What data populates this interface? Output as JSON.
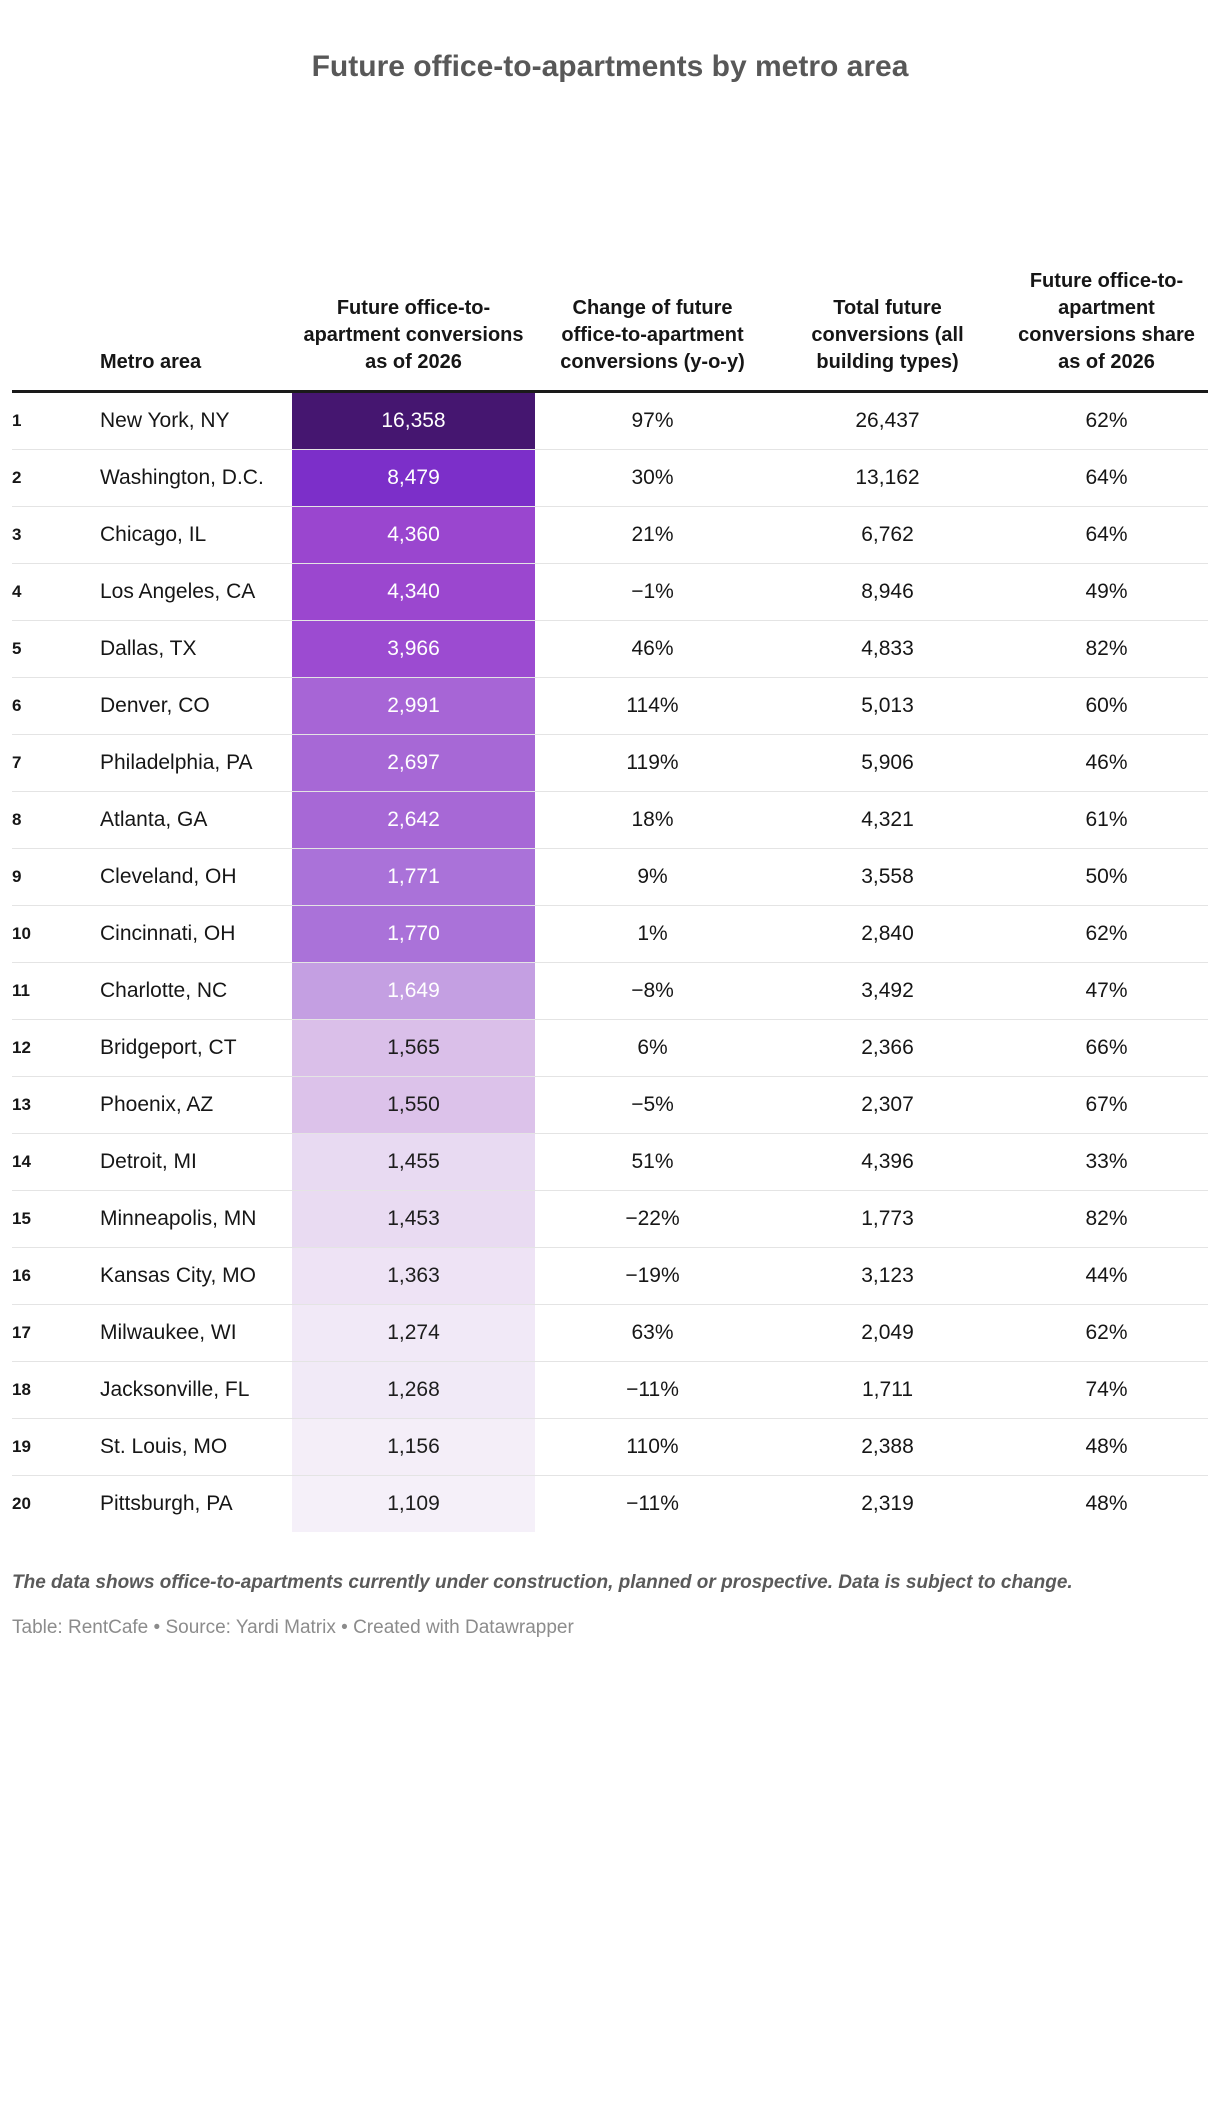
{
  "title": "Future office-to-apartments by metro area",
  "chart_data": {
    "type": "table",
    "title": "Future office-to-apartments by metro area",
    "heatmap_column": "conversions",
    "heatmap_scale": [
      "#451670",
      "#f5f0f9"
    ],
    "columns": [
      {
        "id": "rank",
        "label": ""
      },
      {
        "id": "metro",
        "label": "Metro area"
      },
      {
        "id": "conversions",
        "label": "Future office-to-apartment conversions as of 2026"
      },
      {
        "id": "change",
        "label": "Change of future office-to-apartment conversions (y-o-y)"
      },
      {
        "id": "total",
        "label": "Total future conversions (all building types)"
      },
      {
        "id": "share",
        "label": "Future office-to-apartment conversions share as of 2026"
      }
    ],
    "rows": [
      {
        "rank": "1",
        "metro": "New York, NY",
        "conversions": "16,358",
        "change": "97%",
        "total": "26,437",
        "share": "62%",
        "cell_bg": "#451670",
        "cell_text": "#ffffff"
      },
      {
        "rank": "2",
        "metro": "Washington, D.C.",
        "conversions": "8,479",
        "change": "30%",
        "total": "13,162",
        "share": "64%",
        "cell_bg": "#7c2fc9",
        "cell_text": "#ffffff"
      },
      {
        "rank": "3",
        "metro": "Chicago, IL",
        "conversions": "4,360",
        "change": "21%",
        "total": "6,762",
        "share": "64%",
        "cell_bg": "#9a46cf",
        "cell_text": "#ffffff"
      },
      {
        "rank": "4",
        "metro": "Los Angeles, CA",
        "conversions": "4,340",
        "change": "−1%",
        "total": "8,946",
        "share": "49%",
        "cell_bg": "#9b47cf",
        "cell_text": "#ffffff"
      },
      {
        "rank": "5",
        "metro": "Dallas, TX",
        "conversions": "3,966",
        "change": "46%",
        "total": "4,833",
        "share": "82%",
        "cell_bg": "#9c4bd1",
        "cell_text": "#ffffff"
      },
      {
        "rank": "6",
        "metro": "Denver, CO",
        "conversions": "2,991",
        "change": "114%",
        "total": "5,013",
        "share": "60%",
        "cell_bg": "#a765d6",
        "cell_text": "#ffffff"
      },
      {
        "rank": "7",
        "metro": "Philadelphia, PA",
        "conversions": "2,697",
        "change": "119%",
        "total": "5,906",
        "share": "46%",
        "cell_bg": "#a768d6",
        "cell_text": "#ffffff"
      },
      {
        "rank": "8",
        "metro": "Atlanta, GA",
        "conversions": "2,642",
        "change": "18%",
        "total": "4,321",
        "share": "61%",
        "cell_bg": "#a768d6",
        "cell_text": "#ffffff"
      },
      {
        "rank": "9",
        "metro": "Cleveland, OH",
        "conversions": "1,771",
        "change": "9%",
        "total": "3,558",
        "share": "50%",
        "cell_bg": "#aa72d9",
        "cell_text": "#ffffff"
      },
      {
        "rank": "10",
        "metro": "Cincinnati, OH",
        "conversions": "1,770",
        "change": "1%",
        "total": "2,840",
        "share": "62%",
        "cell_bg": "#aa72d9",
        "cell_text": "#ffffff"
      },
      {
        "rank": "11",
        "metro": "Charlotte, NC",
        "conversions": "1,649",
        "change": "−8%",
        "total": "3,492",
        "share": "47%",
        "cell_bg": "#c49fe2",
        "cell_text": "#ffffff"
      },
      {
        "rank": "12",
        "metro": "Bridgeport, CT",
        "conversions": "1,565",
        "change": "6%",
        "total": "2,366",
        "share": "66%",
        "cell_bg": "#dabfe9",
        "cell_text": "#1d1d1d"
      },
      {
        "rank": "13",
        "metro": "Phoenix, AZ",
        "conversions": "1,550",
        "change": "−5%",
        "total": "2,307",
        "share": "67%",
        "cell_bg": "#dcc2ea",
        "cell_text": "#1d1d1d"
      },
      {
        "rank": "14",
        "metro": "Detroit, MI",
        "conversions": "1,455",
        "change": "51%",
        "total": "4,396",
        "share": "33%",
        "cell_bg": "#e8daf2",
        "cell_text": "#1d1d1d"
      },
      {
        "rank": "15",
        "metro": "Minneapolis, MN",
        "conversions": "1,453",
        "change": "−22%",
        "total": "1,773",
        "share": "82%",
        "cell_bg": "#e9dbf2",
        "cell_text": "#1d1d1d"
      },
      {
        "rank": "16",
        "metro": "Kansas City, MO",
        "conversions": "1,363",
        "change": "−19%",
        "total": "3,123",
        "share": "44%",
        "cell_bg": "#eee3f5",
        "cell_text": "#1d1d1d"
      },
      {
        "rank": "17",
        "metro": "Milwaukee, WI",
        "conversions": "1,274",
        "change": "63%",
        "total": "2,049",
        "share": "62%",
        "cell_bg": "#f1e9f7",
        "cell_text": "#1d1d1d"
      },
      {
        "rank": "18",
        "metro": "Jacksonville, FL",
        "conversions": "1,268",
        "change": "−11%",
        "total": "1,711",
        "share": "74%",
        "cell_bg": "#f1eaf7",
        "cell_text": "#1d1d1d"
      },
      {
        "rank": "19",
        "metro": "St. Louis, MO",
        "conversions": "1,156",
        "change": "110%",
        "total": "2,388",
        "share": "48%",
        "cell_bg": "#f4eef8",
        "cell_text": "#1d1d1d"
      },
      {
        "rank": "20",
        "metro": "Pittsburgh, PA",
        "conversions": "1,109",
        "change": "−11%",
        "total": "2,319",
        "share": "48%",
        "cell_bg": "#f5f0f9",
        "cell_text": "#1d1d1d"
      }
    ]
  },
  "footer": {
    "footnote": "The data shows office-to-apartments currently under construction, planned or prospective. Data is subject to change.",
    "attribution": {
      "table_label": "Table: ",
      "table_source": "RentCafe",
      "separator": " • ",
      "source_label": "Source: ",
      "source_name": "Yardi Matrix",
      "created": "Created with Datawrapper"
    }
  },
  "colors": {
    "title": "#585858",
    "header_border": "#1a1a1a",
    "row_divider": "#e4e4e4",
    "body_text": "#161616",
    "footnote_text": "#5a5a5a",
    "attribution_text": "#8c8c8c"
  }
}
